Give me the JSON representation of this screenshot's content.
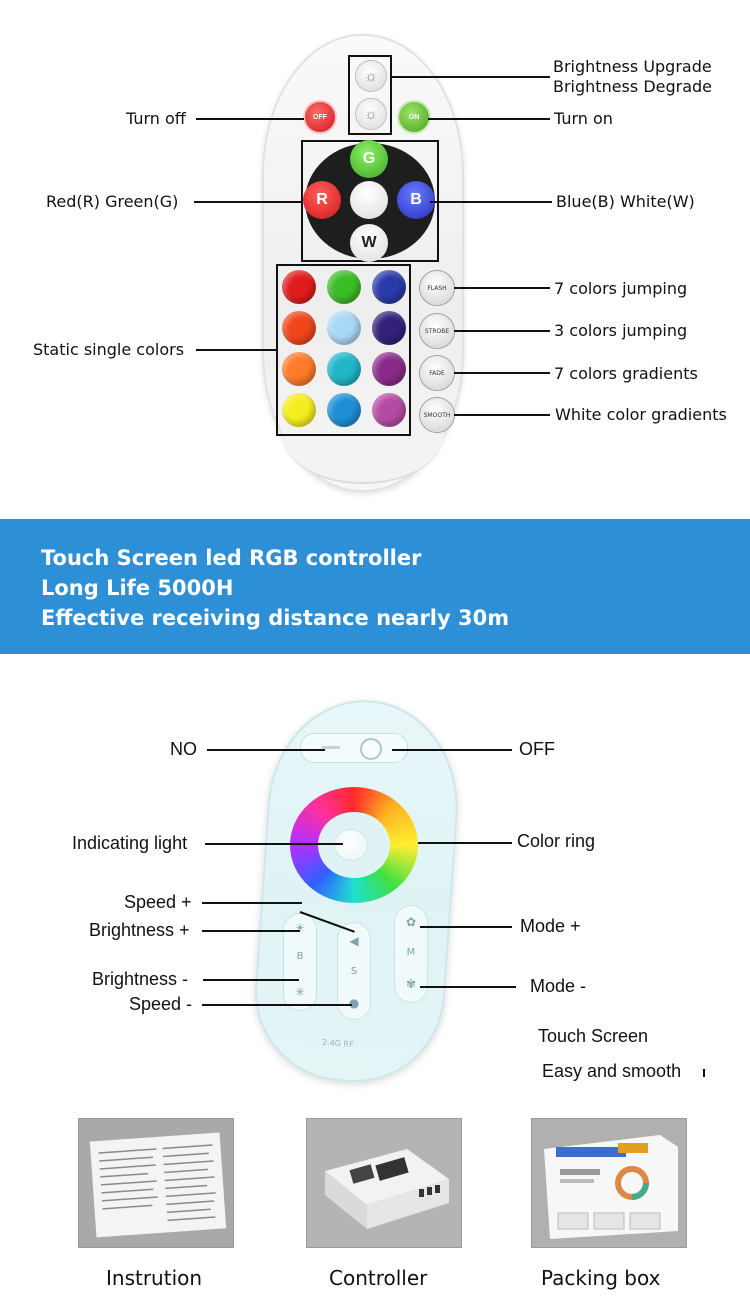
{
  "remote1": {
    "labels": {
      "brightness_up": "Brightness Upgrade",
      "brightness_down": "Brightness Degrade",
      "turn_off": "Turn off",
      "turn_on": "Turn on",
      "red_green": "Red(R) Green(G)",
      "blue_white": "Blue(B) White(W)",
      "static_colors": "Static single colors",
      "flash_desc": "7 colors jumping",
      "strobe_desc": "3 colors jumping",
      "fade_desc": "7 colors gradients",
      "smooth_desc": "White color gradients"
    },
    "buttons": {
      "off": "OFF",
      "on": "ON",
      "g": "G",
      "r": "R",
      "b": "B",
      "w": "W",
      "flash": "FLASH",
      "strobe": "STROBE",
      "fade": "FADE",
      "smooth": "SMOOTH"
    },
    "static_colors": [
      "#e01b1b",
      "#3cbc28",
      "#2a3aa8",
      "#f0461c",
      "#a9d8f6",
      "#33217a",
      "#ff7a2a",
      "#1fb6c8",
      "#8a2a88",
      "#f5ee1e",
      "#1e8fd6",
      "#b54aa4"
    ]
  },
  "banner": {
    "line1": "Touch Screen led RGB controller",
    "line2": "Long Life 5000H",
    "line3": "Effective receiving distance nearly 30m",
    "background": "#2d8fd5"
  },
  "remote2": {
    "labels": {
      "no": "NO",
      "off": "OFF",
      "indicating_light": "Indicating light",
      "color_ring": "Color ring",
      "speed_plus": "Speed +",
      "brightness_plus": "Brightness +",
      "mode_plus": "Mode +",
      "brightness_minus": "Brightness -",
      "speed_minus": "Speed -",
      "mode_minus": "Mode -",
      "touch_screen": "Touch Screen",
      "easy_smooth": "Easy and smooth"
    },
    "strip_letters": {
      "b": "B",
      "s": "S",
      "m": "M"
    },
    "brand": "2.4G RF"
  },
  "photos": [
    {
      "caption": "Instrution"
    },
    {
      "caption": "Controller"
    },
    {
      "caption": "Packing box"
    }
  ]
}
